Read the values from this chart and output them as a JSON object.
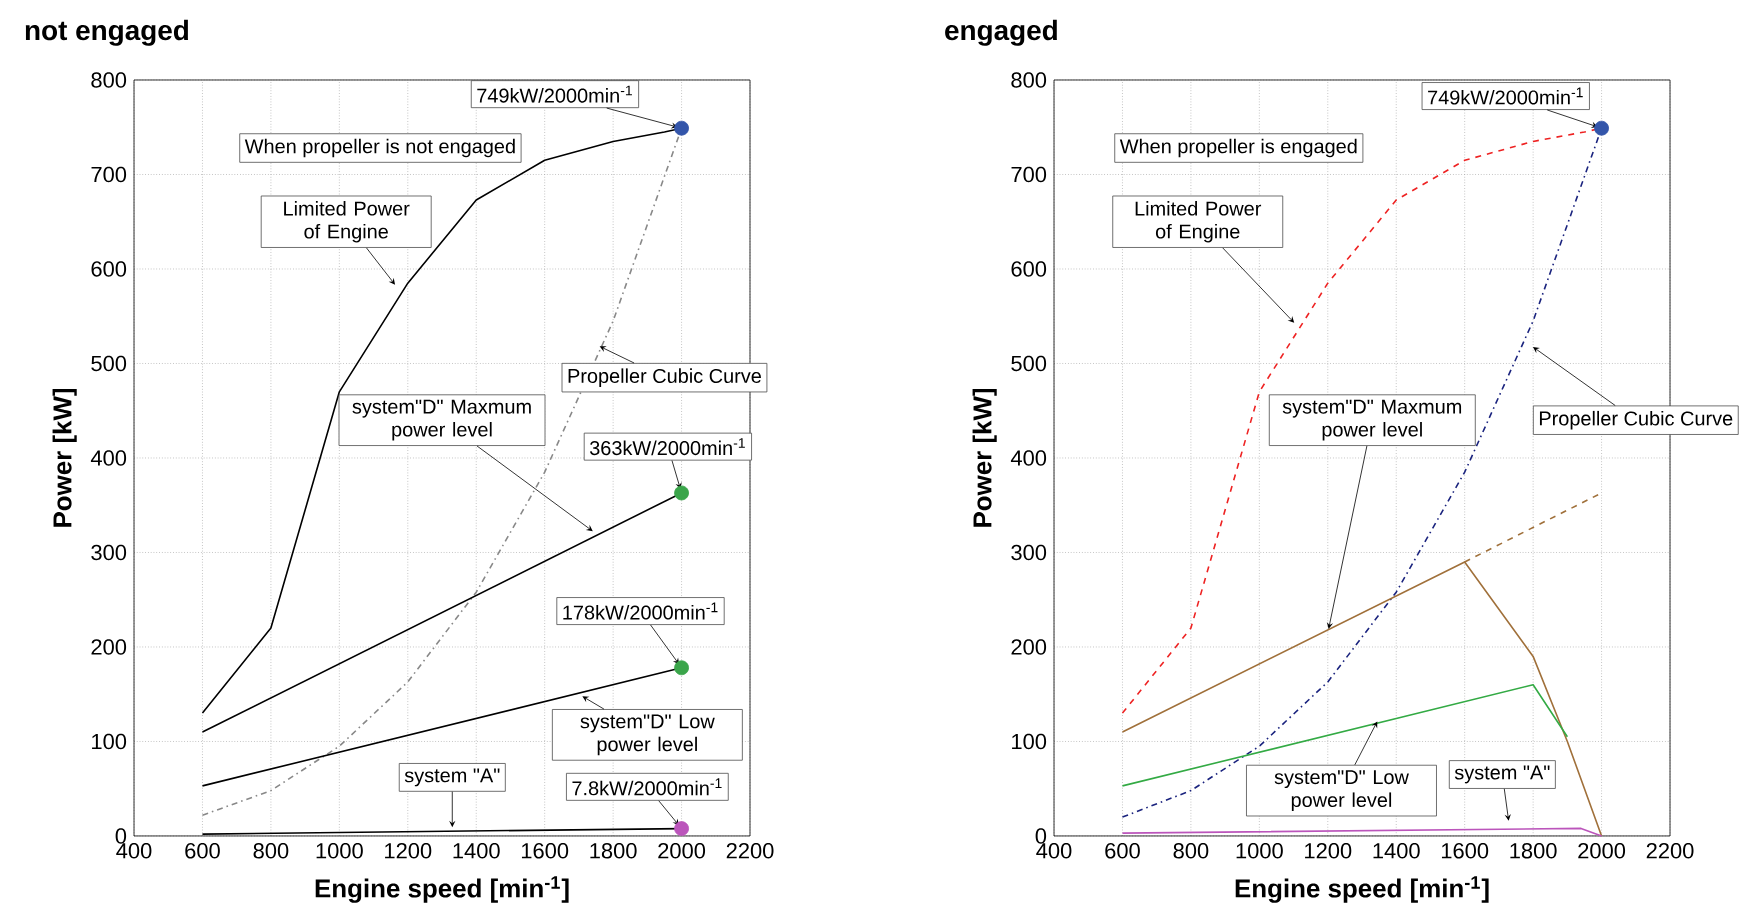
{
  "chart_data": [
    {
      "type": "line",
      "title": "not engaged",
      "xlabel": "Engine speed [min$^{-1}$]",
      "ylabel": "Power [kW]",
      "xlim": [
        400,
        2200
      ],
      "xticks": [
        400,
        600,
        800,
        1000,
        1200,
        1400,
        1600,
        1800,
        2000,
        2200
      ],
      "ylim": [
        0,
        800
      ],
      "yticks": [
        0,
        100,
        200,
        300,
        400,
        500,
        600,
        700,
        800
      ],
      "grid": true,
      "series": [
        {
          "color": "#000000",
          "line_style": "solid",
          "x": [
            600,
            800,
            1000,
            1200,
            1400,
            1600,
            1800,
            1950,
            2000
          ],
          "values": [
            130,
            220,
            470,
            585,
            673,
            715,
            735,
            745,
            749
          ]
        },
        {
          "color": "#888888",
          "line_style": "dashdot",
          "x": [
            600,
            800,
            1000,
            1200,
            1400,
            1600,
            1800,
            2000
          ],
          "values": [
            22,
            48,
            95,
            163,
            258,
            385,
            545,
            749
          ]
        },
        {
          "color": "#000000",
          "line_style": "solid",
          "x": [
            600,
            2000
          ],
          "values": [
            110,
            363
          ]
        },
        {
          "color": "#000000",
          "line_style": "solid",
          "x": [
            600,
            2000
          ],
          "values": [
            53,
            178
          ]
        },
        {
          "color": "#000000",
          "line_style": "solid",
          "x": [
            600,
            2000
          ],
          "values": [
            2,
            7.8
          ]
        },
        {
          "type": "scatter",
          "marker": "circle",
          "color": "#3355aa",
          "x": [
            2000
          ],
          "values": [
            749
          ]
        },
        {
          "type": "scatter",
          "marker": "circle",
          "color": "#3aa54a",
          "x": [
            2000,
            2000
          ],
          "values": [
            363,
            178
          ]
        },
        {
          "type": "scatter",
          "marker": "circle",
          "color": "#bb55bb",
          "x": [
            2000
          ],
          "values": [
            7.8
          ]
        }
      ],
      "annotations": [
        {
          "text": "749kW/2000min$^{-1}$",
          "x": 2000,
          "y": 749
        },
        "When propeller is not engaged",
        {
          "text": "Limited Power of Engine",
          "x": 1170,
          "y": 580
        },
        {
          "text": "Propeller Cubic Curve",
          "x": 1750,
          "y": 520
        },
        {
          "text": "363kW/2000min$^{-1}$",
          "x": 2000,
          "y": 363
        },
        {
          "text": "system\"D\" Maxmum power level",
          "x": 1750,
          "y": 320
        },
        {
          "text": "178kW/2000min$^{-1}$",
          "x": 2000,
          "y": 178
        },
        {
          "text": "system\"D\" Low power level",
          "x": 1700,
          "y": 150
        },
        {
          "text": "system \"A\"",
          "x": 1330,
          "y": 5
        },
        {
          "text": "7.8kW/2000min$^{-1}$",
          "x": 2000,
          "y": 7.8
        }
      ]
    },
    {
      "type": "line",
      "title": "engaged",
      "xlabel": "Engine speed [min$^{-1}$]",
      "ylabel": "Power [kW]",
      "xlim": [
        400,
        2200
      ],
      "xticks": [
        400,
        600,
        800,
        1000,
        1200,
        1400,
        1600,
        1800,
        2000,
        2200
      ],
      "ylim": [
        0,
        800
      ],
      "yticks": [
        0,
        100,
        200,
        300,
        400,
        500,
        600,
        700,
        800
      ],
      "grid": true,
      "series": [
        {
          "color": "#ee2222",
          "line_style": "dashed",
          "x": [
            600,
            800,
            1000,
            1200,
            1400,
            1600,
            1800,
            1950,
            2000
          ],
          "values": [
            130,
            220,
            470,
            585,
            673,
            715,
            735,
            745,
            749
          ]
        },
        {
          "color": "#1a237e",
          "line_style": "dashdot",
          "x": [
            600,
            800,
            1000,
            1200,
            1400,
            1600,
            1800,
            2000
          ],
          "values": [
            20,
            48,
            95,
            163,
            258,
            385,
            545,
            749
          ]
        },
        {
          "color": "#a0703a",
          "line_style": "solid",
          "x": [
            600,
            1600,
            1800,
            1900,
            2000
          ],
          "values": [
            110,
            290,
            190,
            100,
            0
          ]
        },
        {
          "color": "#a0703a",
          "line_style": "dashed",
          "x": [
            1600,
            2000
          ],
          "values": [
            290,
            363
          ]
        },
        {
          "color": "#33aa44",
          "line_style": "solid",
          "x": [
            600,
            1800,
            1900
          ],
          "values": [
            53,
            160,
            105
          ]
        },
        {
          "color": "#bb55bb",
          "line_style": "solid",
          "x": [
            600,
            1940,
            2000
          ],
          "values": [
            3,
            8,
            0
          ]
        },
        {
          "type": "scatter",
          "marker": "circle",
          "color": "#3355aa",
          "x": [
            2000
          ],
          "values": [
            749
          ]
        }
      ],
      "annotations": [
        {
          "text": "749kW/2000min$^{-1}$",
          "x": 2000,
          "y": 749
        },
        "When propeller is engaged",
        {
          "text": "Limited Power of Engine",
          "x": 1110,
          "y": 540
        },
        {
          "text": "Propeller Cubic Curve",
          "x": 1790,
          "y": 520
        },
        {
          "text": "system\"D\" Maxmum power level",
          "x": 1200,
          "y": 215
        },
        {
          "text": "system\"D\" Low power level",
          "x": 1350,
          "y": 125
        },
        {
          "text": "system \"A\"",
          "x": 1730,
          "y": 12
        }
      ]
    }
  ]
}
